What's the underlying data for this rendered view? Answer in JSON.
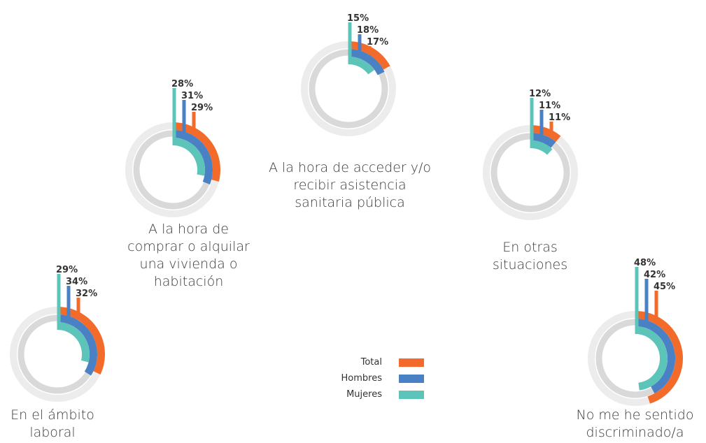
{
  "chart_data": {
    "type": "radial_bar",
    "categories": [
      "En el ámbito laboral",
      "A la hora de comprar o alquilar una vivienda o habitación",
      "A la hora de acceder y/o recibir asistencia sanitaria pública",
      "En otras situaciones",
      "No me he sentido discriminado/a"
    ],
    "series": [
      {
        "name": "Total",
        "color": "#f26b2a",
        "values": [
          32,
          29,
          17,
          11,
          45
        ],
        "value_labels": [
          "32%",
          "29%",
          "17%",
          "11%",
          "45%"
        ]
      },
      {
        "name": "Hombres",
        "color": "#4a80c4",
        "values": [
          34,
          31,
          18,
          11,
          42
        ],
        "value_labels": [
          "34%",
          "31%",
          "18%",
          "11%",
          "42%"
        ]
      },
      {
        "name": "Mujeres",
        "color": "#5cc4b8",
        "values": [
          29,
          28,
          15,
          12,
          48
        ],
        "value_labels": [
          "29%",
          "28%",
          "15%",
          "12%",
          "48%"
        ]
      }
    ],
    "vmax": 100
  }
}
